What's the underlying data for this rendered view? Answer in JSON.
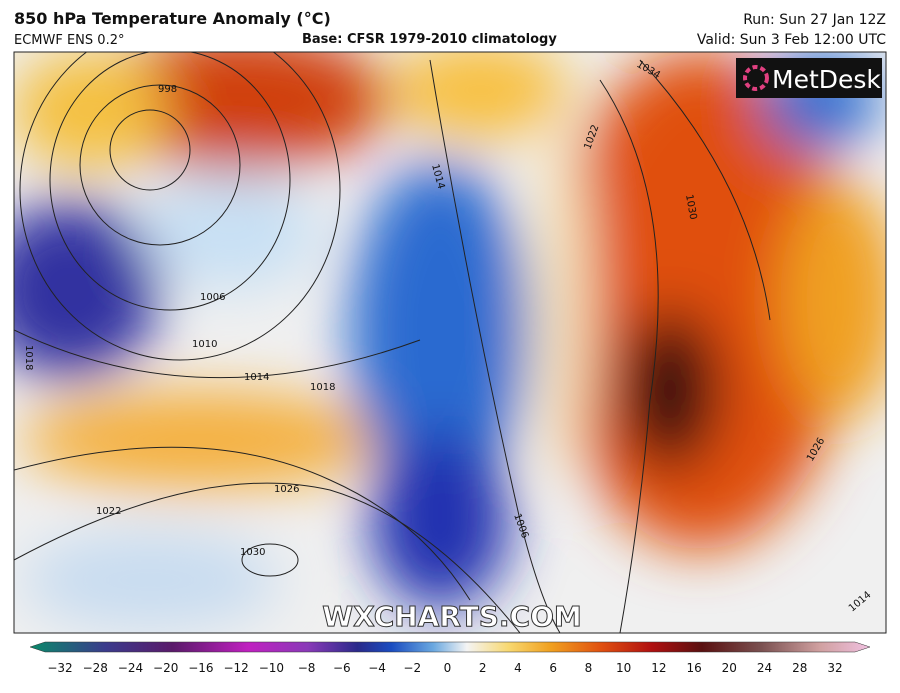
{
  "header": {
    "title": "850 hPa Temperature Anomaly (°C)",
    "model": "ECMWF ENS 0.2°",
    "base": "Base: CFSR 1979-2010 climatology",
    "run": "Run: Sun 27 Jan 12Z",
    "valid": "Valid: Sun 3 Feb 12:00 UTC"
  },
  "logo": "MetDesk",
  "watermark": "WXCHARTS.COM",
  "contour_labels": [
    "998",
    "1006",
    "1010",
    "1014",
    "1018",
    "1022",
    "1026",
    "1030",
    "1014",
    "1030",
    "1022",
    "1026",
    "1006",
    "1018",
    "1034",
    "1014"
  ],
  "colorbar": {
    "ticks": [
      "−32",
      "−28",
      "−24",
      "−20",
      "−16",
      "−12",
      "−10",
      "−8",
      "−6",
      "−4",
      "−2",
      "0",
      "2",
      "4",
      "6",
      "8",
      "10",
      "12",
      "16",
      "20",
      "24",
      "28",
      "32"
    ]
  }
}
